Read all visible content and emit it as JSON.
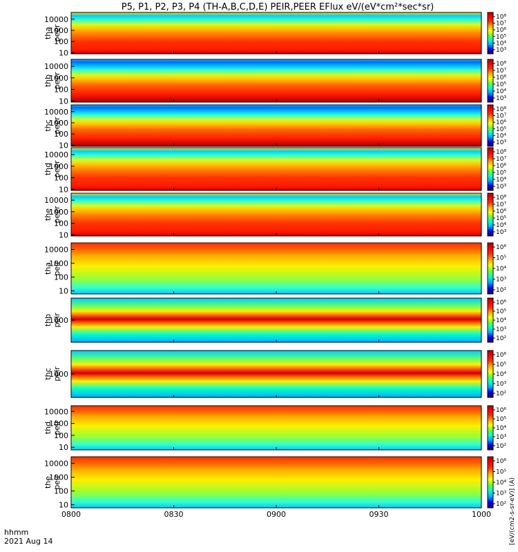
{
  "chart_data": {
    "type": "heatmap",
    "title": "P5, P1, P2, P3, P4 (TH-A,B,C,D,E) PEIR,PEER EFlux eV/(eV*cm²*sec*sr)",
    "x_ticks": [
      "0800",
      "0830",
      "0900",
      "0930",
      "1000"
    ],
    "x_axis_label": "hhmm",
    "date": "2021 Aug 14",
    "y_scale": "log",
    "colorbar_scale": "log",
    "colorbar_label": "[eV/(cm2-s-sr-eV)] (A)",
    "colormap": [
      "#2a0055",
      "#0000ff",
      "#00aaff",
      "#00ffcc",
      "#66ff33",
      "#ffff00",
      "#ffaa00",
      "#ff3300",
      "#ff0000",
      "#aa0000"
    ],
    "panels": [
      {
        "label_line1": "tha",
        "label_line2": "peer",
        "ylim": [
          8,
          40000
        ],
        "yticks": [
          "10000",
          "1000",
          "100",
          "10"
        ],
        "cb_ticks": [
          "10⁸",
          "10⁷",
          "10⁶",
          "10⁵",
          "10⁴",
          "10³"
        ],
        "cb_label": "eV/(cm2-s-sr-eV)"
      },
      {
        "label_line1": "thb",
        "label_line2": "peer",
        "ylim": [
          8,
          40000
        ],
        "yticks": [
          "10000",
          "1000",
          "100",
          "10"
        ],
        "cb_ticks": [
          "10⁸",
          "10⁷",
          "10⁶",
          "10⁵",
          "10⁴",
          "10³"
        ],
        "cb_label": "eV/(cm2-s-sr-eV)"
      },
      {
        "label_line1": "thc",
        "label_line2": "peer",
        "ylim": [
          8,
          40000
        ],
        "yticks": [
          "10000",
          "1000",
          "100",
          "10"
        ],
        "cb_ticks": [
          "10⁸",
          "10⁷",
          "10⁶",
          "10⁵",
          "10⁴",
          "10³"
        ],
        "cb_label": "eV/(cm2-s-sr-eV)"
      },
      {
        "label_line1": "thd",
        "label_line2": "peer",
        "ylim": [
          8,
          40000
        ],
        "yticks": [
          "10000",
          "1000",
          "100",
          "10"
        ],
        "cb_ticks": [
          "10⁸",
          "10⁷",
          "10⁶",
          "10⁵",
          "10⁴",
          "10³"
        ],
        "cb_label": "eV/(cm2-s-sr-eV)"
      },
      {
        "label_line1": "the",
        "label_line2": "peer",
        "ylim": [
          8,
          40000
        ],
        "yticks": [
          "10000",
          "1000",
          "100",
          "10"
        ],
        "cb_ticks": [
          "10⁸",
          "10⁷",
          "10⁶",
          "10⁵",
          "10⁴",
          "10³"
        ],
        "cb_label": "eV/(cm2-s-sr-eV)"
      },
      {
        "label_line1": "tha",
        "label_line2": "peir",
        "ylim": [
          6,
          30000
        ],
        "yticks": [
          "10000",
          "1000",
          "100",
          "10"
        ],
        "cb_ticks": [
          "10⁶",
          "10⁵",
          "10⁴",
          "10³",
          "10²"
        ],
        "cb_label": "eV/(cm2-s-sr-eV)"
      },
      {
        "label_line1": "thb",
        "label_line2": "peir",
        "ylim": [
          100,
          10000
        ],
        "yticks": [
          "1000"
        ],
        "cb_ticks": [
          "10⁶",
          "10⁵",
          "10⁴",
          "10³",
          "10²"
        ],
        "cb_label": "eV/(cm2-s-sr-eV)"
      },
      {
        "label_line1": "thc",
        "label_line2": "peir",
        "ylim": [
          100,
          10000
        ],
        "yticks": [
          "1000"
        ],
        "cb_ticks": [
          "10⁶",
          "10⁵",
          "10⁴",
          "10³",
          "10²"
        ],
        "cb_label": "eV/(cm2-s-sr-eV)"
      },
      {
        "label_line1": "thd",
        "label_line2": "peir",
        "ylim": [
          6,
          30000
        ],
        "yticks": [
          "10000",
          "1000",
          "100",
          "10"
        ],
        "cb_ticks": [
          "10⁶",
          "10⁵",
          "10⁴",
          "10³",
          "10²"
        ],
        "cb_label": "eV/(cm2-s-sr-eV)"
      },
      {
        "label_line1": "the",
        "label_line2": "peir",
        "ylim": [
          6,
          30000
        ],
        "yticks": [
          "10000",
          "1000",
          "100",
          "10"
        ],
        "cb_ticks": [
          "10⁶",
          "10⁵",
          "10⁴",
          "10³",
          "10²"
        ],
        "cb_label": "eV/(cm2-s-sr-eV)"
      }
    ]
  }
}
